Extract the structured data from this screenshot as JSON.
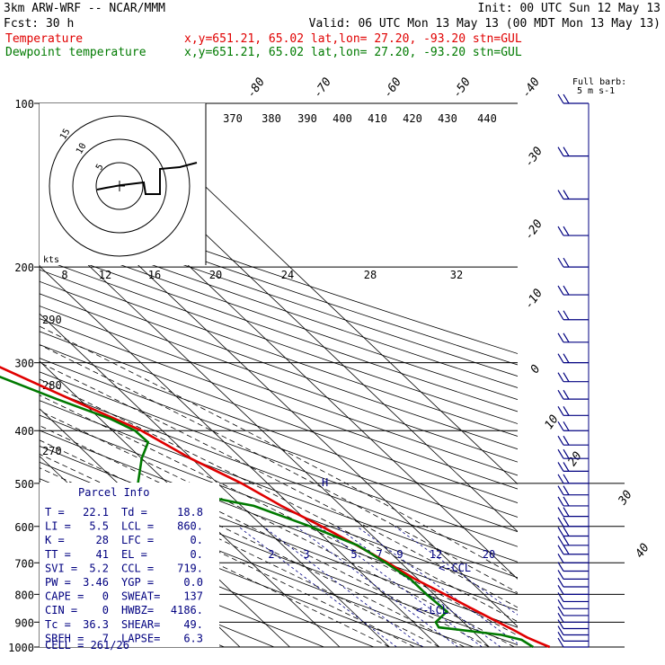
{
  "header": {
    "model": "3km ARW-WRF -- NCAR/MMM",
    "init": "Init: 00 UTC Sun 12 May 13",
    "fcst": "Fcst:    30 h",
    "valid": "Valid: 06 UTC Mon 13 May 13 (00 MDT Mon 13 May 13)",
    "temp_label": "Temperature",
    "temp_info": "x,y=651.21, 65.02   lat,lon= 27.20, -93.20  stn=GUL",
    "dew_label": "Dewpoint temperature",
    "dew_info": "x,y=651.21, 65.02   lat,lon= 27.20, -93.20  stn=GUL"
  },
  "colors": {
    "temperature": "#e00000",
    "dewpoint": "#007a00",
    "parcel_box": "#000080",
    "mixing_ratio": "#000080"
  },
  "chart_data": {
    "type": "line",
    "title": "",
    "xlabel": "",
    "ylabel": "",
    "y_scale": "log pressure",
    "y_ticks": [
      "100",
      "200",
      "300",
      "400",
      "500",
      "600",
      "700",
      "800",
      "900",
      "1000"
    ],
    "isotherm_labels": [
      "-80",
      "-70",
      "-60",
      "-50",
      "-40",
      "-30",
      "-20",
      "-10",
      "0",
      "10",
      "20",
      "30",
      "40"
    ],
    "theta_labels": [
      "290",
      "280",
      "270"
    ],
    "thetae_labels": [
      "370",
      "380",
      "390",
      "400",
      "410",
      "420",
      "430",
      "440"
    ],
    "mixing_ratio_labels": [
      "2",
      "3",
      "5",
      "7",
      "9",
      "12",
      "20"
    ],
    "hodograph": {
      "unit_label": "kts",
      "axis_labels": [
        "8",
        "12",
        "16",
        "20",
        "24",
        "28",
        "32"
      ],
      "ring_labels": [
        "15",
        "10",
        "5"
      ]
    },
    "barb_key": {
      "label": "Full barb:",
      "unit": "5 m s-1"
    },
    "annotations": [
      "<-CCL",
      "<-LCL",
      "H"
    ],
    "series": [
      {
        "name": "Temperature",
        "points": [
          [
            1000,
            22.1
          ],
          [
            980,
            20.8
          ],
          [
            960,
            19.6
          ],
          [
            930,
            18.4
          ],
          [
            900,
            17.0
          ],
          [
            850,
            14.6
          ],
          [
            800,
            12.2
          ],
          [
            750,
            9.4
          ],
          [
            700,
            7.4
          ],
          [
            650,
            4.8
          ],
          [
            600,
            1.8
          ],
          [
            550,
            -2.0
          ],
          [
            500,
            -5.2
          ],
          [
            450,
            -10.2
          ],
          [
            400,
            -14.2
          ],
          [
            350,
            -21.8
          ],
          [
            300,
            -30.2
          ],
          [
            250,
            -38.5
          ],
          [
            200,
            -49.5
          ],
          [
            175,
            -55.5
          ],
          [
            150,
            -60.5
          ],
          [
            125,
            -65.5
          ],
          [
            110,
            -67.0
          ],
          [
            100,
            -68.5
          ]
        ]
      },
      {
        "name": "Dewpoint temperature",
        "points": [
          [
            1000,
            18.8
          ],
          [
            970,
            18.0
          ],
          [
            950,
            15.0
          ],
          [
            920,
            4.0
          ],
          [
            900,
            4.5
          ],
          [
            860,
            9.0
          ],
          [
            800,
            8.5
          ],
          [
            750,
            8.5
          ],
          [
            700,
            7.0
          ],
          [
            650,
            5.0
          ],
          [
            600,
            -0.5
          ],
          [
            550,
            -7.5
          ],
          [
            500,
            -26.0
          ],
          [
            450,
            -20.0
          ],
          [
            420,
            -15.3
          ],
          [
            400,
            -15.5
          ],
          [
            380,
            -18.0
          ],
          [
            350,
            -24.5
          ],
          [
            300,
            -35.5
          ],
          [
            250,
            -47.2
          ],
          [
            200,
            -62.5
          ],
          [
            175,
            -68.5
          ],
          [
            150,
            -70.3
          ],
          [
            125,
            -72.0
          ],
          [
            110,
            -76.5
          ],
          [
            100,
            -80.5
          ]
        ]
      }
    ]
  },
  "parcel_info": {
    "title": "Parcel Info",
    "rows": [
      [
        "T  =",
        "22.1",
        "Td =",
        "18.8"
      ],
      [
        "LI =",
        "5.5",
        "LCL =",
        "860."
      ],
      [
        "K  =",
        "28",
        "LFC =",
        "0."
      ],
      [
        "TT =",
        "41",
        "EL  =",
        "0."
      ],
      [
        "SVI =",
        "5.2",
        "CCL =",
        "719."
      ],
      [
        "PW =",
        "3.46",
        "YGP =",
        "0.0"
      ],
      [
        "CAPE =",
        "0",
        "SWEAT=",
        "137"
      ],
      [
        "CIN =",
        "0",
        "HWBZ=",
        "4186."
      ],
      [
        "Tc =",
        "36.3",
        "SHEAR=",
        "49."
      ],
      [
        "SREH =",
        "7",
        "LAPSE=",
        "6.3"
      ]
    ],
    "cell": "CELL = 261/26"
  }
}
